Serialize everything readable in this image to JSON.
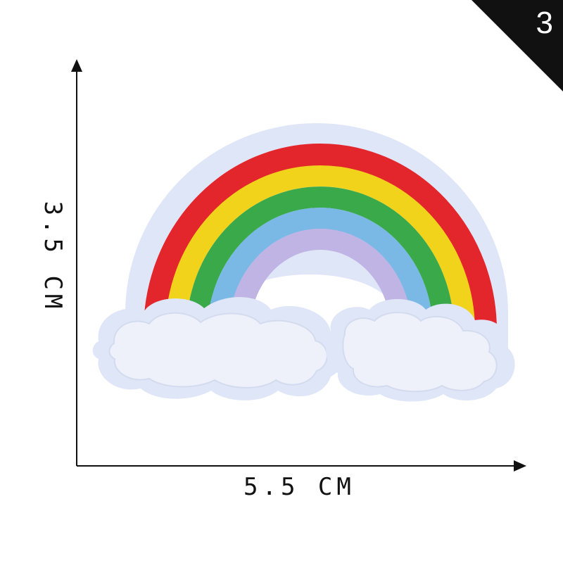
{
  "badge": {
    "number": "3"
  },
  "dimensions": {
    "width_label": "5.5 CM",
    "height_label": "3.5 CM"
  },
  "patch": {
    "rainbow_colors": [
      "#e3262b",
      "#f2d31b",
      "#3aa94a",
      "#7ab8e6",
      "#c0b4e4"
    ],
    "border_color": "#dfe6f8",
    "cloud_color": "#eef1fa"
  }
}
